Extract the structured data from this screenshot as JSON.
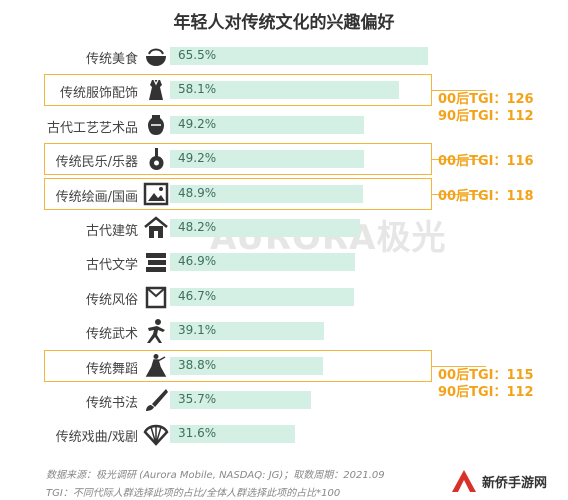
{
  "chart_data": {
    "type": "bar",
    "orientation": "horizontal",
    "title": "年轻人对传统文化的兴趣偏好",
    "categories": [
      "传统美食",
      "传统服饰配饰",
      "古代工艺艺术品",
      "传统民乐/乐器",
      "传统绘画/国画",
      "古代建筑",
      "古代文学",
      "传统风俗",
      "传统武术",
      "传统舞蹈",
      "传统书法",
      "传统戏曲/戏剧"
    ],
    "values": [
      65.5,
      58.1,
      49.2,
      49.2,
      48.9,
      48.2,
      46.9,
      46.7,
      39.1,
      38.8,
      35.7,
      31.6
    ],
    "value_labels": [
      "65.5%",
      "58.1%",
      "49.2%",
      "49.2%",
      "48.9%",
      "48.2%",
      "46.9%",
      "46.7%",
      "39.1%",
      "38.8%",
      "35.7%",
      "31.6%"
    ],
    "xlim": [
      0,
      70
    ],
    "bar_color": "#d4f0e5",
    "highlight_color": "#f3b53a",
    "tgi_color": "#f3a21a",
    "highlights": [
      {
        "category_index": 1,
        "tgi": [
          "00后TGI：126",
          "90后TGI：112"
        ]
      },
      {
        "category_index": 3,
        "tgi": [
          "00后TGI：116"
        ]
      },
      {
        "category_index": 4,
        "tgi": [
          "00后TGI：118"
        ]
      },
      {
        "category_index": 9,
        "tgi": [
          "00后TGI：115",
          "90后TGI：112"
        ]
      }
    ],
    "icons": [
      "bowl-icon",
      "qipao-icon",
      "vase-icon",
      "pipa-icon",
      "painting-icon",
      "pavilion-icon",
      "books-icon",
      "scroll-icon",
      "martial-arts-icon",
      "dancer-icon",
      "brush-icon",
      "fan-icon"
    ]
  },
  "watermark": "AURORA极光",
  "footnotes": {
    "source": "数据来源：极光调研 (Aurora Mobile, NASDAQ: JG)；取数周期：2021.09",
    "tgi": "TGI：不同代际人群选择此项的占比/全体人群选择此项的占比*100"
  },
  "logo": {
    "text": "新侨手游网"
  }
}
